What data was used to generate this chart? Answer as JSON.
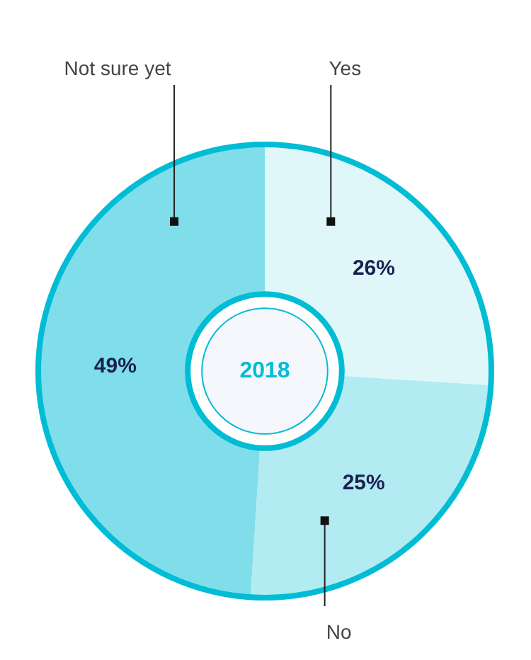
{
  "chart_data": {
    "type": "donut",
    "categories": [
      "Yes",
      "No",
      "Not sure yet"
    ],
    "values": [
      26,
      25,
      49
    ],
    "colors": [
      "#e0f7fa",
      "#b2ebf2",
      "#80deea"
    ],
    "value_labels": [
      "26%",
      "25%",
      "49%"
    ],
    "annotations": [
      "2018"
    ],
    "legend": false
  }
}
